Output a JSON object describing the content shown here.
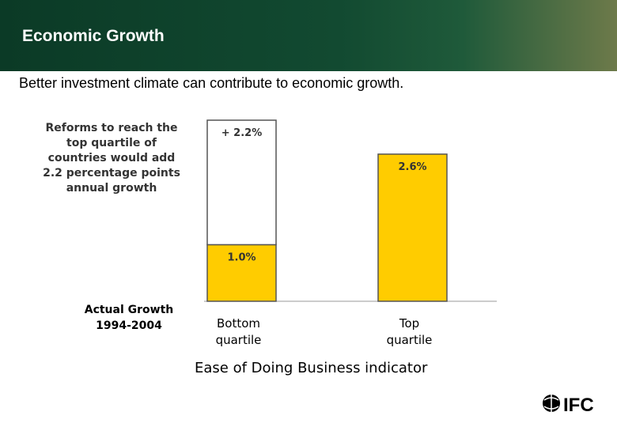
{
  "header": {
    "title": "Economic Growth"
  },
  "subtitle": "Better investment climate can contribute to economic growth.",
  "callout_lines": [
    "Reforms to reach the",
    "top quartile of",
    "countries would add",
    "2.2 percentage points",
    "annual growth"
  ],
  "actual_growth_lines": [
    "Actual Growth",
    "1994-2004"
  ],
  "logo": {
    "text": "IFC",
    "icon": "ifc-globe-icon"
  },
  "colors": {
    "header_bg": "#124a31",
    "bar_fill": "#ffcc00",
    "bar_stroke": "#555555"
  },
  "chart_data": {
    "type": "bar",
    "stacked": true,
    "categories": [
      "Bottom\nquartile",
      "Top\nquartile"
    ],
    "series": [
      {
        "name": "",
        "values": [
          1.0,
          2.6
        ],
        "labels": [
          "1.0%",
          "2.6%"
        ]
      },
      {
        "name": "",
        "values": [
          2.2,
          0
        ],
        "labels": [
          "+ 2.2%",
          ""
        ]
      }
    ],
    "xlabel": "Ease of Doing Business indicator",
    "ylabel": "",
    "ylim": [
      0,
      3.2
    ],
    "grid": false
  }
}
